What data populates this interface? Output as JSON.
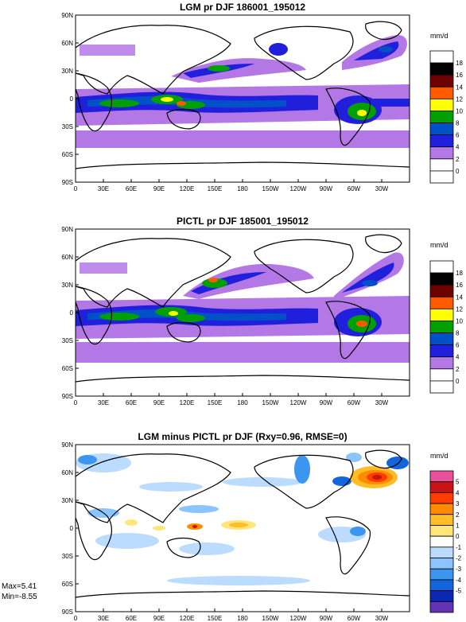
{
  "panels": [
    {
      "id": "lgm",
      "title": "LGM pr DJF 186001_195012",
      "units": "mm/d",
      "colorbar": {
        "labels": [
          "18",
          "16",
          "14",
          "12",
          "10",
          "8",
          "6",
          "4",
          "2",
          "0"
        ],
        "colors": [
          "#ffffff",
          "#000000",
          "#6e0000",
          "#ff5a00",
          "#ffff00",
          "#00a000",
          "#0050c8",
          "#2020dc",
          "#b478e6",
          "#ffffff",
          "#ffffff"
        ]
      }
    },
    {
      "id": "pictl",
      "title": "PICTL pr DJF 185001_195012",
      "units": "mm/d",
      "colorbar": {
        "labels": [
          "18",
          "16",
          "14",
          "12",
          "10",
          "8",
          "6",
          "4",
          "2",
          "0"
        ],
        "colors": [
          "#ffffff",
          "#000000",
          "#6e0000",
          "#ff5a00",
          "#ffff00",
          "#00a000",
          "#0050c8",
          "#2020dc",
          "#b478e6",
          "#ffffff",
          "#ffffff"
        ]
      }
    },
    {
      "id": "diff",
      "title": "LGM minus PICTL pr DJF (Rxy=0.96, RMSE=0)",
      "units": "mm/d",
      "colorbar": {
        "labels": [
          "5",
          "4",
          "3",
          "2",
          "1",
          "0",
          "-1",
          "-2",
          "-3",
          "-4",
          "-5"
        ],
        "colors": [
          "#e8509c",
          "#c81414",
          "#ff3c00",
          "#ff8c00",
          "#ffbe28",
          "#ffe678",
          "#ffffff",
          "#bcdcff",
          "#8cc4ff",
          "#3c96f0",
          "#1464dc",
          "#0a28b4",
          "#6432b4"
        ]
      }
    }
  ],
  "lat_labels": [
    "90N",
    "60N",
    "30N",
    "0",
    "30S",
    "60S",
    "90S"
  ],
  "lon_labels": [
    "0",
    "30E",
    "60E",
    "90E",
    "120E",
    "150E",
    "180",
    "150W",
    "120W",
    "90W",
    "60W",
    "30W"
  ],
  "stats": {
    "max": "Max=5.41",
    "min": "Min=-8.55"
  }
}
